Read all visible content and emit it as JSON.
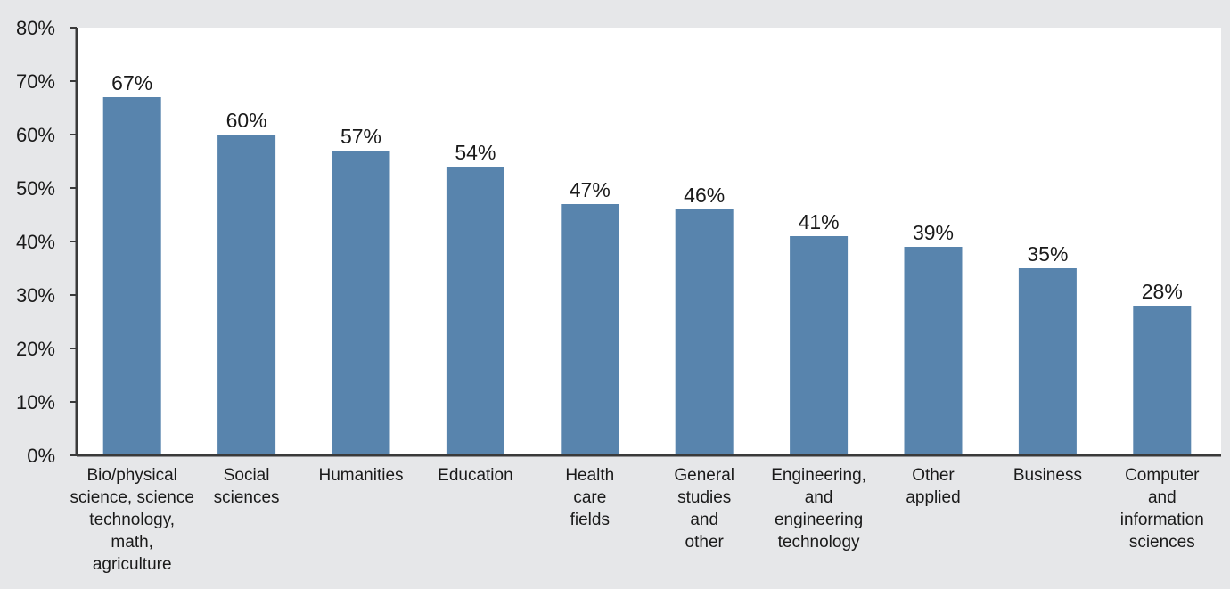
{
  "chart_data": {
    "type": "bar",
    "categories": [
      "Bio/physical science, science technology, math, agriculture",
      "Social sciences",
      "Humanities",
      "Education",
      "Health care fields",
      "General studies and other",
      "Engineering, and engineering technology",
      "Other applied",
      "Business",
      "Computer and information sciences"
    ],
    "category_lines": [
      [
        "Bio/physical",
        "science, science",
        "technology,",
        "math,",
        "agriculture"
      ],
      [
        "Social",
        "sciences"
      ],
      [
        "Humanities"
      ],
      [
        "Education"
      ],
      [
        "Health",
        "care",
        "fields"
      ],
      [
        "General",
        "studies",
        "and",
        "other"
      ],
      [
        "Engineering,",
        "and",
        "engineering",
        "technology"
      ],
      [
        "Other",
        "applied"
      ],
      [
        "Business"
      ],
      [
        "Computer",
        "and",
        "information",
        "sciences"
      ]
    ],
    "values": [
      67,
      60,
      57,
      54,
      47,
      46,
      41,
      39,
      35,
      28
    ],
    "value_labels": [
      "67%",
      "60%",
      "57%",
      "54%",
      "47%",
      "46%",
      "41%",
      "39%",
      "35%",
      "28%"
    ],
    "y_ticks": [
      0,
      10,
      20,
      30,
      40,
      50,
      60,
      70,
      80
    ],
    "y_tick_labels": [
      "0%",
      "10%",
      "20%",
      "30%",
      "40%",
      "50%",
      "60%",
      "70%",
      "80%"
    ],
    "ylim": [
      0,
      80
    ],
    "title": "",
    "xlabel": "",
    "ylabel": "",
    "grid": false,
    "legend": "none",
    "colors": {
      "bar": "#5884ad",
      "plot_bg": "#ffffff",
      "page_bg": "#e6e7e9",
      "axis": "#3a3a3a"
    }
  }
}
